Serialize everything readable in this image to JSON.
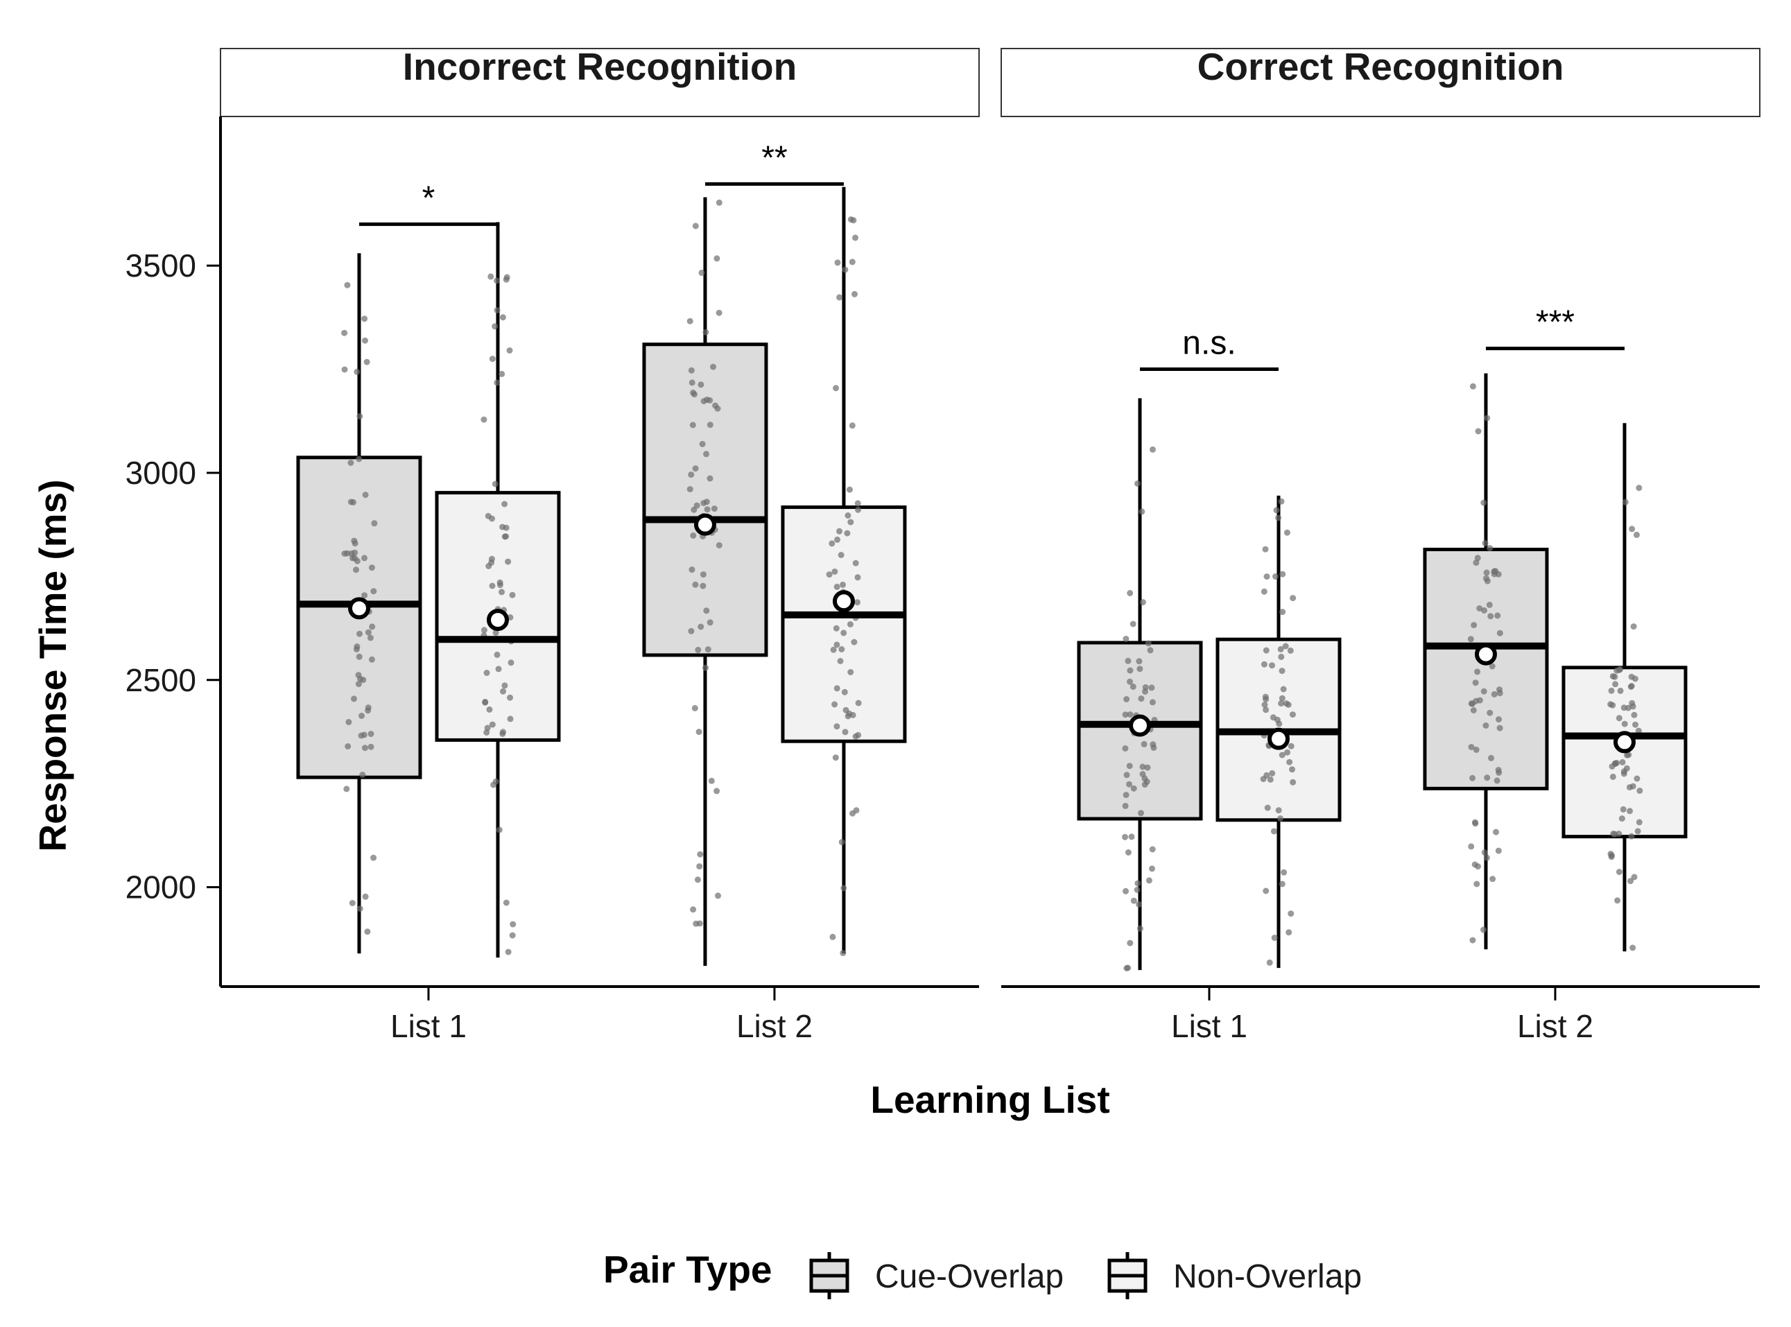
{
  "chart_data": {
    "type": "box",
    "xlabel": "Learning List",
    "ylabel": "Response Time (ms)",
    "ylim": [
      1760,
      3860
    ],
    "yticks": [
      2000,
      2500,
      3000,
      3500
    ],
    "categories": [
      "List 1",
      "List 2"
    ],
    "grid": false,
    "legend": {
      "title": "Pair Type",
      "position": "bottom",
      "entries": [
        {
          "label": "Cue-Overlap",
          "fill": "#dcdcdc"
        },
        {
          "label": "Non-Overlap",
          "fill": "#f2f2f2"
        }
      ]
    },
    "colors": {
      "Cue-Overlap": "#dcdcdc",
      "Non-Overlap": "#f2f2f2",
      "points": "#666666",
      "outline": "#000000"
    },
    "panels": [
      {
        "title": "Incorrect Recognition",
        "groups": [
          {
            "category": "List 1",
            "boxes": [
              {
                "series": "Cue-Overlap",
                "whisker_low": 1840,
                "q1": 2265,
                "median": 2683,
                "q3": 3037,
                "whisker_high": 3530,
                "mean": 2673
              },
              {
                "series": "Non-Overlap",
                "whisker_low": 1830,
                "q1": 2355,
                "median": 2598,
                "q3": 2952,
                "whisker_high": 3605,
                "mean": 2645
              }
            ],
            "significance": {
              "label": "*",
              "y": 3600
            }
          },
          {
            "category": "List 2",
            "boxes": [
              {
                "series": "Cue-Overlap",
                "whisker_low": 1810,
                "q1": 2560,
                "median": 2887,
                "q3": 3310,
                "whisker_high": 3665,
                "mean": 2875
              },
              {
                "series": "Non-Overlap",
                "whisker_low": 1840,
                "q1": 2352,
                "median": 2657,
                "q3": 2917,
                "whisker_high": 3690,
                "mean": 2690
              }
            ],
            "significance": {
              "label": "**",
              "y": 3697
            }
          }
        ]
      },
      {
        "title": "Correct Recognition",
        "groups": [
          {
            "category": "List 1",
            "boxes": [
              {
                "series": "Cue-Overlap",
                "whisker_low": 1800,
                "q1": 2165,
                "median": 2393,
                "q3": 2590,
                "whisker_high": 3180,
                "mean": 2390
              },
              {
                "series": "Non-Overlap",
                "whisker_low": 1805,
                "q1": 2162,
                "median": 2375,
                "q3": 2598,
                "whisker_high": 2945,
                "mean": 2358
              }
            ],
            "significance": {
              "label": "n.s.",
              "y": 3250
            }
          },
          {
            "category": "List 2",
            "boxes": [
              {
                "series": "Cue-Overlap",
                "whisker_low": 1850,
                "q1": 2238,
                "median": 2582,
                "q3": 2815,
                "whisker_high": 3240,
                "mean": 2562
              },
              {
                "series": "Non-Overlap",
                "whisker_low": 1845,
                "q1": 2122,
                "median": 2365,
                "q3": 2530,
                "whisker_high": 3120,
                "mean": 2350
              }
            ],
            "significance": {
              "label": "***",
              "y": 3300
            }
          }
        ]
      }
    ]
  }
}
